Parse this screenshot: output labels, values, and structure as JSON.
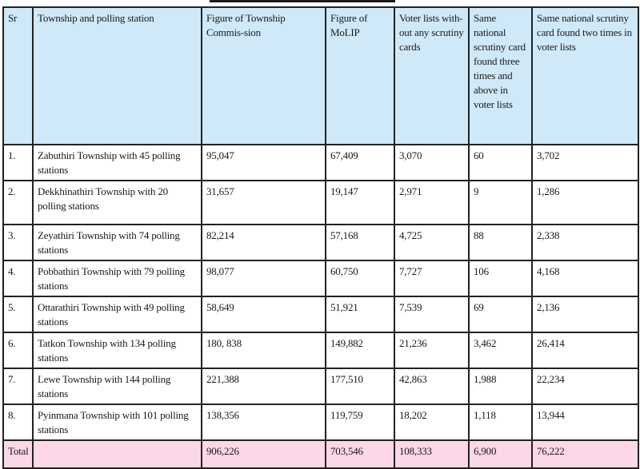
{
  "table": {
    "headers": [
      "Sr",
      "Township and polling station",
      "Figure of Township Commis-sion",
      "Figure of MoLIP",
      "Voter lists with-out any scrutiny cards",
      "Same national scrutiny card found three times and above in voter lists",
      "Same national scrutiny card found two times in voter lists"
    ],
    "rows": [
      [
        "1.",
        "Zabuthiri Township with 45 polling stations",
        "95,047",
        "67,409",
        "3,070",
        "60",
        "3,702"
      ],
      [
        "2.",
        "Dekkhinathiri Township with 20 polling stations",
        "31,657",
        "19,147",
        "2,971",
        "9",
        "1,286"
      ],
      [
        "3.",
        "Zeyathiri Township with 74 polling stations",
        "82,214",
        "57,168",
        "4,725",
        "88",
        "2,338"
      ],
      [
        "4.",
        "Pobbathiri Township with 79 polling stations",
        "98,077",
        "60,750",
        "7,727",
        "106",
        "4,168"
      ],
      [
        "5.",
        "Ottarathiri Township with 49 polling stations",
        "58,649",
        "51,921",
        "7,539",
        "69",
        "2,136"
      ],
      [
        "6.",
        "Tatkon Township with 134 polling stations",
        "180, 838",
        "149,882",
        "21,236",
        "3,462",
        "26,414"
      ],
      [
        "7.",
        "Lewe Township with 144 polling stations",
        "221,388",
        "177,510",
        "42,863",
        "1,988",
        "22,234"
      ],
      [
        "8.",
        "Pyinmana Township with 101 polling stations",
        "138,356",
        "119,759",
        "18,202",
        "1,118",
        "13,944"
      ]
    ],
    "total": [
      "Total",
      "",
      "906,226",
      "703,546",
      "108,333",
      "6,900",
      "76,222"
    ]
  },
  "colors": {
    "header_bg": "#cfe9f8",
    "total_bg": "#fbd7e8",
    "border": "#222222"
  }
}
